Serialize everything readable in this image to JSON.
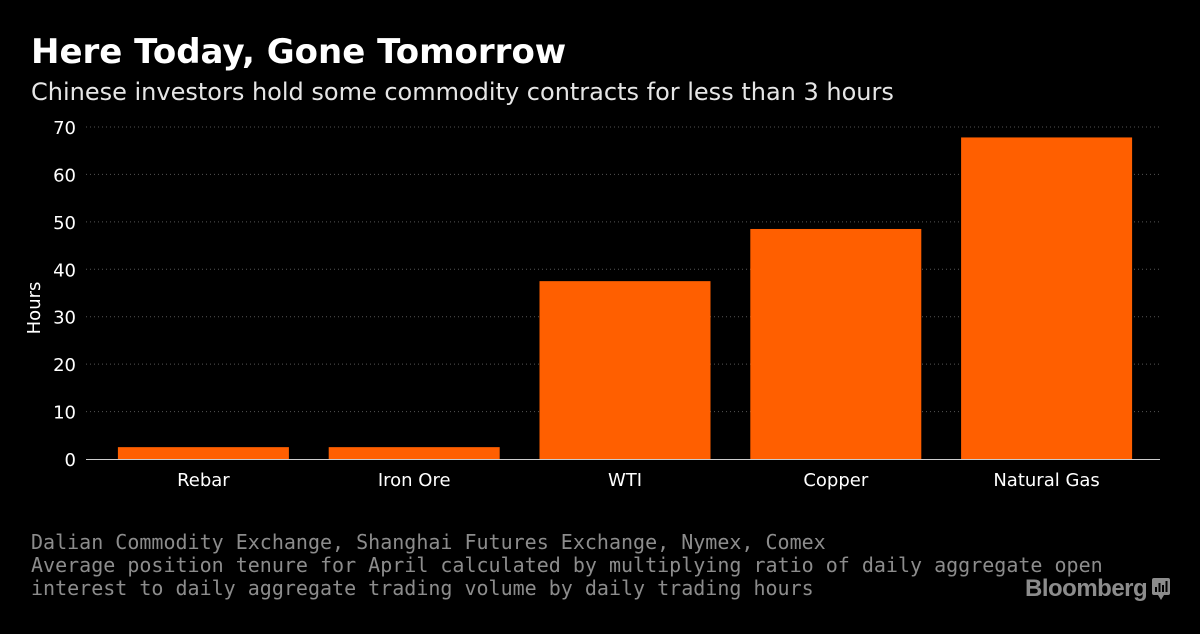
{
  "header": {
    "title": "Here Today, Gone Tomorrow",
    "subtitle": "Chinese investors hold some commodity contracts for less than 3 hours"
  },
  "chart_data": {
    "type": "bar",
    "categories": [
      "Rebar",
      "Iron Ore",
      "WTI",
      "Copper",
      "Natural Gas"
    ],
    "values": [
      2.5,
      2.5,
      37.5,
      48.5,
      67.8
    ],
    "ylabel": "Hours",
    "xlabel": "",
    "ylim": [
      0,
      70
    ],
    "yticks": [
      0,
      10,
      20,
      30,
      40,
      50,
      60,
      70
    ],
    "grid": true,
    "bar_color": "#ff5f00",
    "grid_color": "#555555"
  },
  "footer": {
    "source_lines": [
      "Dalian Commodity Exchange, Shanghai Futures Exchange, Nymex, Comex",
      "Average position tenure for April calculated by multiplying ratio of daily aggregate open",
      "interest to daily aggregate trading volume by daily trading hours"
    ],
    "brand": "Bloomberg",
    "brand_icon": "bloomberg-terminal-icon"
  }
}
